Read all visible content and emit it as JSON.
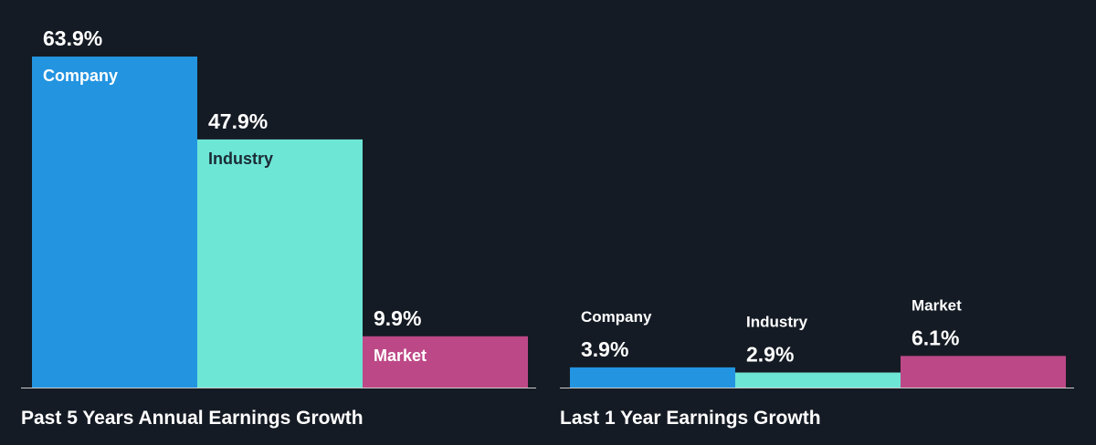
{
  "chart_data": [
    {
      "type": "bar",
      "title": "Past 5 Years Annual Earnings Growth",
      "categories": [
        "Company",
        "Industry",
        "Market"
      ],
      "values": [
        63.9,
        47.9,
        9.9
      ],
      "value_labels": [
        "63.9%",
        "47.9%",
        "9.9%"
      ],
      "unit": "%",
      "ylim": [
        0,
        63.9
      ],
      "grid": false,
      "legend": "none",
      "category_label_position": "inside"
    },
    {
      "type": "bar",
      "title": "Last 1 Year Earnings Growth",
      "categories": [
        "Company",
        "Industry",
        "Market"
      ],
      "values": [
        3.9,
        2.9,
        6.1
      ],
      "value_labels": [
        "3.9%",
        "2.9%",
        "6.1%"
      ],
      "unit": "%",
      "ylim": [
        0,
        63.9
      ],
      "grid": false,
      "legend": "none",
      "category_label_position": "above"
    }
  ],
  "colors": {
    "background": "#151b24",
    "company": "#2394e0",
    "industry": "#6ee6d6",
    "market": "#bd4887",
    "baseline": "#cccccc",
    "text": "#ffffff",
    "label_on_light": "#1a2a35"
  }
}
